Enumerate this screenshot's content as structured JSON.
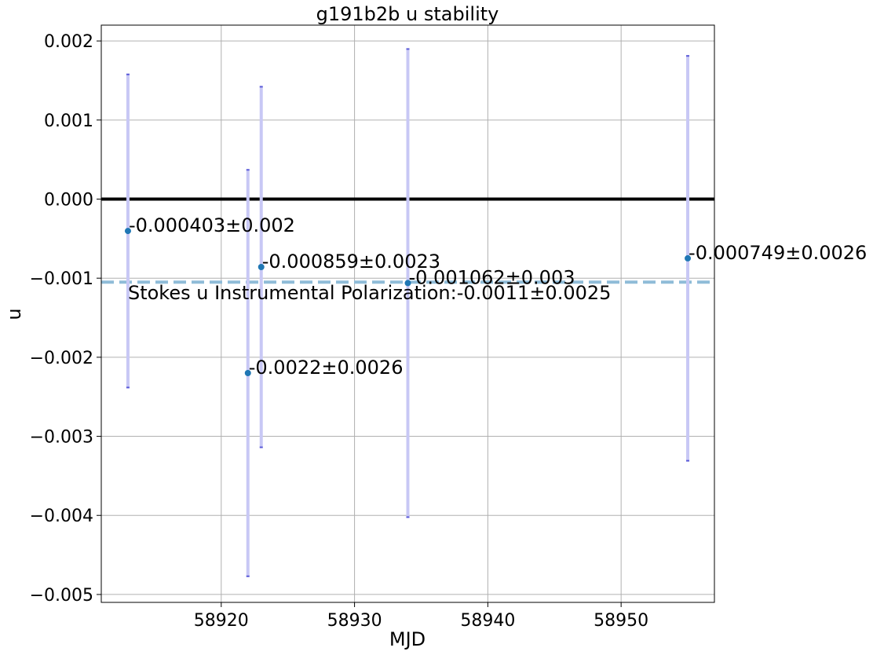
{
  "chart_data": {
    "type": "scatter",
    "title": "g191b2b u stability",
    "xlabel": "MJD",
    "ylabel": "u",
    "xlim": [
      58911,
      58957
    ],
    "ylim": [
      -0.0051,
      0.0022
    ],
    "xticks": [
      58920,
      58930,
      58940,
      58950
    ],
    "xtick_labels": [
      "58920",
      "58930",
      "58940",
      "58950"
    ],
    "yticks": [
      0.002,
      0.001,
      0.0,
      -0.001,
      -0.002,
      -0.003,
      -0.004,
      -0.005
    ],
    "ytick_labels": [
      "0.002",
      "0.001",
      "0.000",
      "−0.001",
      "−0.002",
      "−0.003",
      "−0.004",
      "−0.005"
    ],
    "grid": true,
    "points": [
      {
        "x": 58913,
        "y": -0.000403,
        "err": 0.00198,
        "label": "-0.000403±0.002"
      },
      {
        "x": 58922,
        "y": -0.0022,
        "err": 0.00257,
        "label": "-0.0022±0.0026"
      },
      {
        "x": 58923,
        "y": -0.000859,
        "err": 0.00228,
        "label": "-0.000859±0.0023"
      },
      {
        "x": 58934,
        "y": -0.001062,
        "err": 0.00296,
        "label": "-0.001062±0.003"
      },
      {
        "x": 58955,
        "y": -0.000749,
        "err": 0.00256,
        "label": "-0.000749±0.0026"
      }
    ],
    "zero_line": 0.0,
    "mean_line": {
      "y": -0.00105,
      "label": "Stokes u Instrumental Polarization:-0.0011±0.0025"
    },
    "colors": {
      "point": "#1f77b4",
      "errorbar": "#c8c8f5",
      "errorcap": "#5a5ad8",
      "zero_line": "#000000",
      "mean_line": "#8fbcd8",
      "grid": "#b0b0b0"
    }
  }
}
